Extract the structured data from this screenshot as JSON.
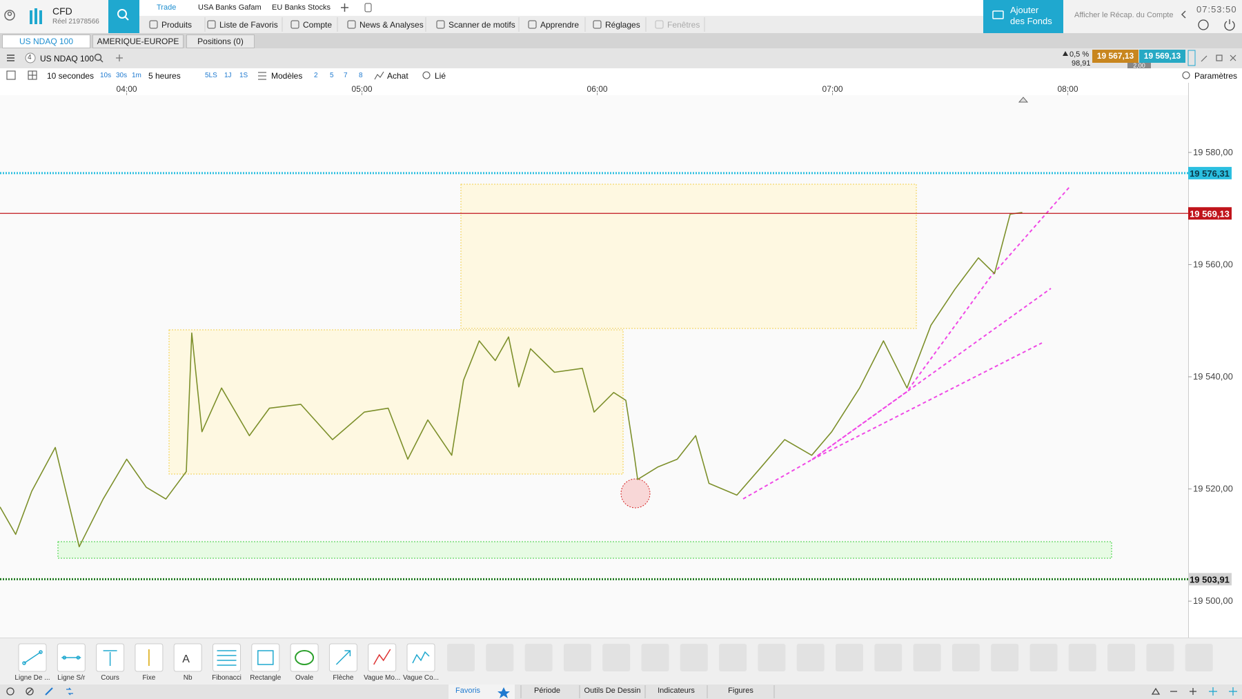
{
  "header": {
    "product": "CFD",
    "account": "Réel 21978566",
    "top_tabs": [
      "Trade",
      "USA Banks Gafam",
      "EU Banks Stocks"
    ],
    "menu": [
      "Produits",
      "Liste de Favoris",
      "Compte",
      "News & Analyses",
      "Scanner de motifs",
      "Apprendre",
      "Réglages",
      "Fenêtres"
    ],
    "add_funds": [
      "Ajouter",
      "des Fonds"
    ],
    "account_summary": "Afficher le Récap. du Compte",
    "clock": "07:53:50"
  },
  "tabs": [
    "US NDAQ 100",
    "AMERIQUE-EUROPE",
    "Positions (0)"
  ],
  "instrument": {
    "badge": "4",
    "name": "US NDAQ 100",
    "change_pct": "0,5 %",
    "change_pts": "98,91",
    "sell": "19 567,13",
    "buy": "19 569,13",
    "spread": "2,00"
  },
  "toolbar": {
    "interval": "10 secondes",
    "quick_intervals": [
      "10s",
      "30s",
      "1m"
    ],
    "period": "5 heures",
    "quick_periods": [
      "5LS",
      "1J",
      "1S"
    ],
    "templates": "Modèles",
    "layouts": [
      "2",
      "5",
      "7",
      "8"
    ],
    "side": "Achat",
    "link": "Lié",
    "settings": "Paramètres"
  },
  "chart_data": {
    "type": "line",
    "color": "#7c8f2a",
    "x": [
      207.7,
      211.7,
      215.8,
      221.8,
      227.9,
      234,
      240,
      245,
      250,
      255.2,
      256.6,
      259.2,
      264.2,
      271.3,
      276.4,
      284.4,
      292.5,
      300.6,
      306.7,
      311.7,
      316.8,
      322.9,
      325.9,
      329.9,
      334,
      337.4,
      340,
      343,
      349.1,
      356.2,
      359.2,
      364.2,
      367.3,
      369.3,
      370.3,
      375.4,
      380.4,
      385.1,
      388.5,
      395.6,
      401.7,
      407.8,
      414.7,
      419.8,
      426.9,
      433,
      439,
      445.1,
      451.2,
      457.2,
      461.3,
      465.3,
      468.4
    ],
    "values": [
      19516.8,
      19511.9,
      19519.6,
      19527.4,
      19509.7,
      19518.2,
      19525.3,
      19520.3,
      19518.2,
      19523.1,
      19547.8,
      19530.2,
      19538,
      19529.5,
      19534.4,
      19535.1,
      19528.8,
      19533.7,
      19534.4,
      19525.3,
      19532.3,
      19526,
      19539.4,
      19546.4,
      19542.9,
      19547.1,
      19538.2,
      19545,
      19540.8,
      19541.5,
      19533.7,
      19537.2,
      19535.8,
      19526.7,
      19521.7,
      19523.9,
      19525.3,
      19529.5,
      19521,
      19518.9,
      19523.8,
      19528.8,
      19526,
      19530.2,
      19538,
      19546.4,
      19538,
      19549.2,
      19555.6,
      19561.2,
      19558.4,
      19569,
      19569.3
    ],
    "xlim": [
      207.7,
      510.7
    ],
    "xticks": [
      {
        "value": 240,
        "label": "04:00"
      },
      {
        "value": 300,
        "label": "05:00"
      },
      {
        "value": 360,
        "label": "06:00"
      },
      {
        "value": 420,
        "label": "07:00"
      },
      {
        "value": 480,
        "label": "08:00"
      }
    ],
    "ylim": [
      19493.5,
      19590.2
    ],
    "yticks": [
      {
        "value": 19580,
        "label": "19 580,00"
      },
      {
        "value": 19560,
        "label": "19 560,00"
      },
      {
        "value": 19540,
        "label": "19 540,00"
      },
      {
        "value": 19520,
        "label": "19 520,00"
      },
      {
        "value": 19500,
        "label": "19 500,00"
      }
    ],
    "levels": [
      {
        "value": 19576.31,
        "label": "19 576,31",
        "color": "#2bbfe0",
        "text_color": "#0b3a4a",
        "style": "dotted"
      },
      {
        "value": 19569.13,
        "label": "19 569,13",
        "color": "#c0141b",
        "text_color": "#ffffff",
        "style": "solid"
      },
      {
        "value": 19503.91,
        "label": "19 503,91",
        "color": "#1e7a1e",
        "text_color": "#111111",
        "style": "dotted"
      }
    ],
    "grid": false
  },
  "drawing_tools": [
    "Ligne De ...",
    "Ligne S/r",
    "Cours",
    "Fixe",
    "Nb",
    "Fibonacci",
    "Rectangle",
    "Ovale",
    "Flèche",
    "Vague Mo...",
    "Vague Co..."
  ],
  "bottom_tabs": [
    "Favoris",
    "Période",
    "Outils De Dessin",
    "Indicateurs",
    "Figures"
  ]
}
